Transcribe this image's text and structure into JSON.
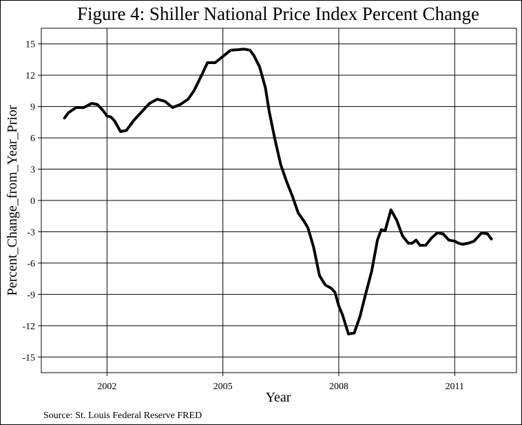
{
  "chart_data": {
    "type": "line",
    "title": "Figure 4: Shiller National Price Index Percent Change",
    "xlabel": "Year",
    "ylabel": "Percent_Change_from_Year_Prior",
    "source": "Source: St. Louis Federal Reserve FRED",
    "xlim": [
      2000.3,
      2012.6
    ],
    "ylim": [
      -16.5,
      16.5
    ],
    "x_ticks": [
      2002,
      2005,
      2008,
      2011
    ],
    "x_tick_labels": [
      "2002",
      "2005",
      "2008",
      "2011"
    ],
    "y_ticks": [
      15,
      12,
      9,
      6,
      3,
      0,
      -3,
      -6,
      -9,
      -12,
      -15
    ],
    "y_tick_labels": [
      "15",
      "12",
      "9",
      "6",
      "3",
      "0",
      "-3",
      "-6",
      "-9",
      "-12",
      "-15"
    ],
    "grid": true,
    "line_color": "#000000",
    "series": [
      {
        "x": [
          2000.9,
          2001.0,
          2001.2,
          2001.4,
          2001.6,
          2001.75,
          2001.9,
          2002.0,
          2002.1,
          2002.2,
          2002.35,
          2002.5,
          2002.7,
          2002.9,
          2003.1,
          2003.3,
          2003.5,
          2003.7,
          2003.9,
          2004.1,
          2004.25,
          2004.45,
          2004.6,
          2004.8,
          2005.0,
          2005.2,
          2005.4,
          2005.55,
          2005.7,
          2005.8,
          2005.95,
          2006.1,
          2006.2,
          2006.35,
          2006.5,
          2006.65,
          2006.8,
          2006.95,
          2007.1,
          2007.2,
          2007.35,
          2007.5,
          2007.65,
          2007.8,
          2007.9,
          2008.0,
          2008.1,
          2008.25,
          2008.4,
          2008.55,
          2008.7,
          2008.85,
          2009.0,
          2009.1,
          2009.2,
          2009.35,
          2009.5,
          2009.65,
          2009.8,
          2009.9,
          2010.0,
          2010.1,
          2010.25,
          2010.4,
          2010.55,
          2010.7,
          2010.85,
          2011.0,
          2011.1,
          2011.2,
          2011.35,
          2011.5,
          2011.6,
          2011.7,
          2011.85,
          2011.95
        ],
        "y": [
          7.9,
          8.4,
          8.9,
          8.9,
          9.3,
          9.2,
          8.6,
          8.1,
          8.0,
          7.6,
          6.6,
          6.7,
          7.7,
          8.5,
          9.3,
          9.7,
          9.5,
          8.9,
          9.2,
          9.7,
          10.5,
          12.0,
          13.2,
          13.2,
          13.8,
          14.4,
          14.45,
          14.5,
          14.4,
          13.9,
          12.8,
          10.8,
          8.5,
          5.8,
          3.4,
          1.8,
          0.4,
          -1.2,
          -2.0,
          -2.6,
          -4.5,
          -7.2,
          -8.1,
          -8.4,
          -8.8,
          -10.1,
          -11.0,
          -12.8,
          -12.7,
          -11.1,
          -8.9,
          -6.8,
          -3.8,
          -2.8,
          -2.9,
          -0.9,
          -1.9,
          -3.4,
          -4.1,
          -4.1,
          -3.8,
          -4.3,
          -4.3,
          -3.6,
          -3.1,
          -3.2,
          -3.8,
          -3.9,
          -4.1,
          -4.2,
          -4.1,
          -3.9,
          -3.5,
          -3.1,
          -3.2,
          -3.7
        ]
      }
    ]
  }
}
